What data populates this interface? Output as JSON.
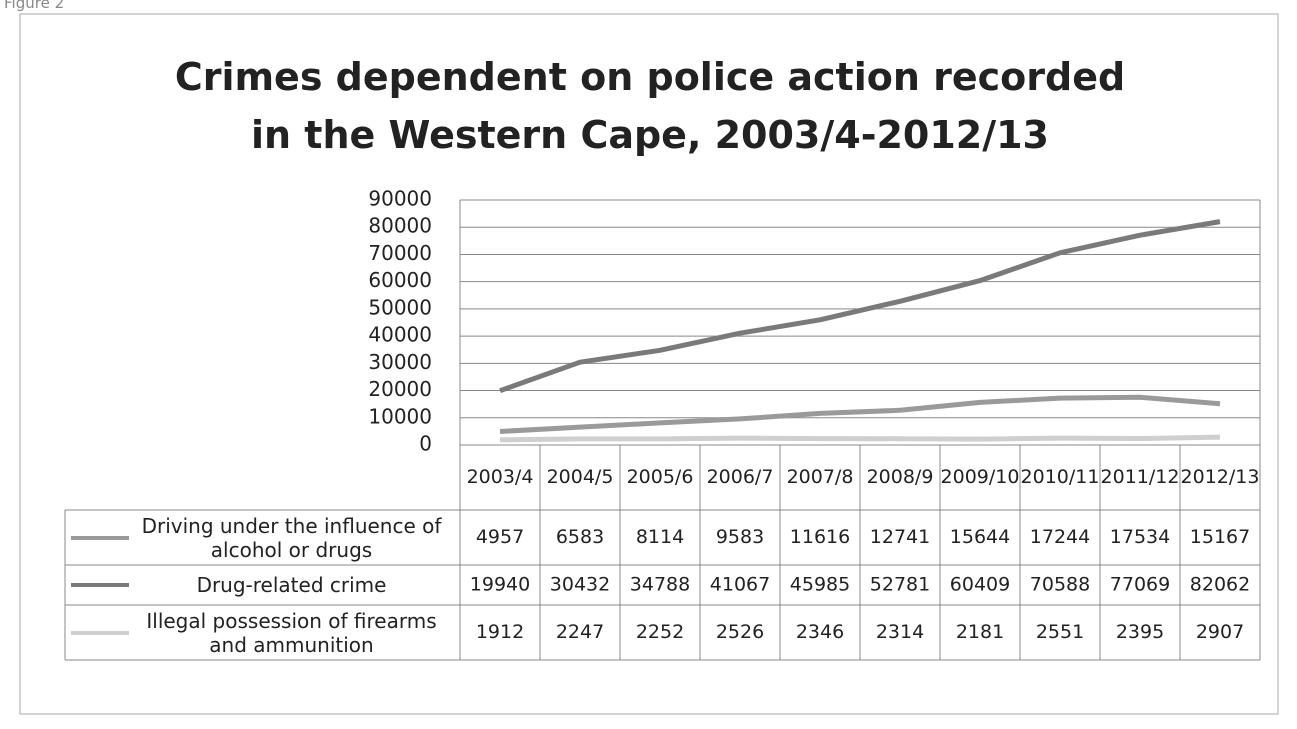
{
  "figure_label": "Figure 2",
  "chart_data": {
    "type": "line",
    "title": "Crimes dependent on police action recorded in the Western Cape, 2003/4-2012/13",
    "categories": [
      "2003/4",
      "2004/5",
      "2005/6",
      "2006/7",
      "2007/8",
      "2008/9",
      "2009/10",
      "2010/11",
      "2011/12",
      "2012/13"
    ],
    "series": [
      {
        "name": "Driving under the influence of alcohol or drugs",
        "color": "#9a9a9a",
        "values": [
          4957,
          6583,
          8114,
          9583,
          11616,
          12741,
          15644,
          17244,
          17534,
          15167
        ]
      },
      {
        "name": "Drug-related crime",
        "color": "#7a7a7a",
        "values": [
          19940,
          30432,
          34788,
          41067,
          45985,
          52781,
          60409,
          70588,
          77069,
          82062
        ]
      },
      {
        "name": "Illegal possession of firearms and ammunition",
        "color": "#cfcfcf",
        "values": [
          1912,
          2247,
          2252,
          2526,
          2346,
          2314,
          2181,
          2551,
          2395,
          2907
        ]
      }
    ],
    "ylim": [
      0,
      90000
    ],
    "yticks": [
      0,
      10000,
      20000,
      30000,
      40000,
      50000,
      60000,
      70000,
      80000,
      90000
    ],
    "grid": true,
    "data_table": true
  }
}
